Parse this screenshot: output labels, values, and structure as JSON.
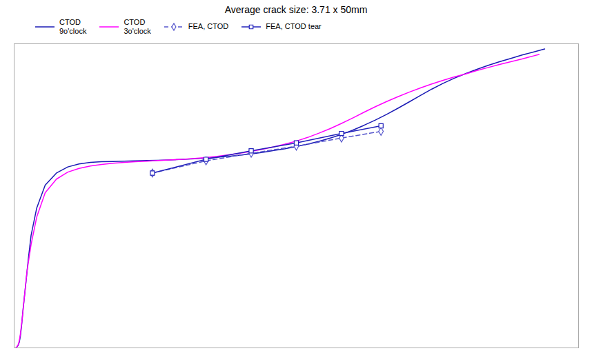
{
  "chart_data": {
    "type": "line",
    "title": "Average crack size: 3.71 x 50mm",
    "xlim": [
      0.0,
      1.0
    ],
    "ylim": [
      0.0,
      1.0
    ],
    "tick_labels": false,
    "grid": false,
    "legend": "top-left",
    "series": [
      {
        "name": "CTOD\n9o'clock",
        "color": "#1a1ab5",
        "line_style": "solid",
        "x": [
          0.005,
          0.007,
          0.009,
          0.011,
          0.013,
          0.016,
          0.02,
          0.025,
          0.03,
          0.04,
          0.055,
          0.075,
          0.095,
          0.115,
          0.135,
          0.155,
          0.175,
          0.195,
          0.215,
          0.235,
          0.255,
          0.275,
          0.3,
          0.32,
          0.34,
          0.36,
          0.38,
          0.4,
          0.42,
          0.44,
          0.46,
          0.48,
          0.5,
          0.52,
          0.54,
          0.56,
          0.58,
          0.6,
          0.62,
          0.64,
          0.66,
          0.68,
          0.7,
          0.72,
          0.74,
          0.76,
          0.78,
          0.8,
          0.82,
          0.84,
          0.86,
          0.88,
          0.9,
          0.91,
          0.92,
          0.93,
          0.94
        ],
        "values": [
          0.003,
          0.008,
          0.018,
          0.038,
          0.07,
          0.13,
          0.2,
          0.29,
          0.37,
          0.46,
          0.535,
          0.575,
          0.595,
          0.605,
          0.61,
          0.612,
          0.613,
          0.614,
          0.615,
          0.616,
          0.617,
          0.618,
          0.62,
          0.622,
          0.624,
          0.627,
          0.63,
          0.634,
          0.638,
          0.643,
          0.649,
          0.655,
          0.662,
          0.67,
          0.679,
          0.69,
          0.702,
          0.716,
          0.732,
          0.749,
          0.768,
          0.788,
          0.809,
          0.83,
          0.851,
          0.87,
          0.887,
          0.902,
          0.916,
          0.929,
          0.941,
          0.952,
          0.963,
          0.968,
          0.973,
          0.978,
          0.983
        ]
      },
      {
        "name": "CTOD\n3o'clock",
        "color": "#ff00ff",
        "line_style": "solid",
        "x": [
          0.003,
          0.005,
          0.007,
          0.009,
          0.011,
          0.014,
          0.018,
          0.023,
          0.03,
          0.04,
          0.055,
          0.075,
          0.095,
          0.115,
          0.135,
          0.155,
          0.175,
          0.195,
          0.215,
          0.235,
          0.255,
          0.275,
          0.3,
          0.32,
          0.34,
          0.36,
          0.38,
          0.4,
          0.42,
          0.44,
          0.46,
          0.48,
          0.5,
          0.52,
          0.54,
          0.56,
          0.58,
          0.6,
          0.62,
          0.64,
          0.66,
          0.68,
          0.7,
          0.72,
          0.74,
          0.76,
          0.78,
          0.8,
          0.82,
          0.84,
          0.86,
          0.88,
          0.9,
          0.91,
          0.92,
          0.93
        ],
        "values": [
          0.001,
          0.004,
          0.01,
          0.022,
          0.045,
          0.09,
          0.165,
          0.255,
          0.34,
          0.43,
          0.51,
          0.555,
          0.578,
          0.59,
          0.598,
          0.603,
          0.607,
          0.61,
          0.612,
          0.614,
          0.616,
          0.618,
          0.62,
          0.623,
          0.626,
          0.63,
          0.635,
          0.64,
          0.646,
          0.653,
          0.661,
          0.67,
          0.68,
          0.692,
          0.706,
          0.721,
          0.738,
          0.756,
          0.775,
          0.793,
          0.81,
          0.826,
          0.841,
          0.855,
          0.868,
          0.88,
          0.891,
          0.901,
          0.912,
          0.922,
          0.932,
          0.941,
          0.95,
          0.955,
          0.96,
          0.965
        ]
      },
      {
        "name": "FEA, CTOD",
        "color": "#5555cc",
        "line_style": "dashed",
        "marker": "diamond",
        "x": [
          0.245,
          0.34,
          0.42,
          0.5,
          0.58,
          0.65
        ],
        "values": [
          0.575,
          0.615,
          0.64,
          0.663,
          0.69,
          0.712
        ]
      },
      {
        "name": "FEA, CTOD tear",
        "color": "#2222bb",
        "line_style": "solid",
        "marker": "square",
        "x": [
          0.245,
          0.34,
          0.42,
          0.5,
          0.58,
          0.65
        ],
        "values": [
          0.575,
          0.62,
          0.648,
          0.674,
          0.705,
          0.73
        ]
      }
    ]
  }
}
